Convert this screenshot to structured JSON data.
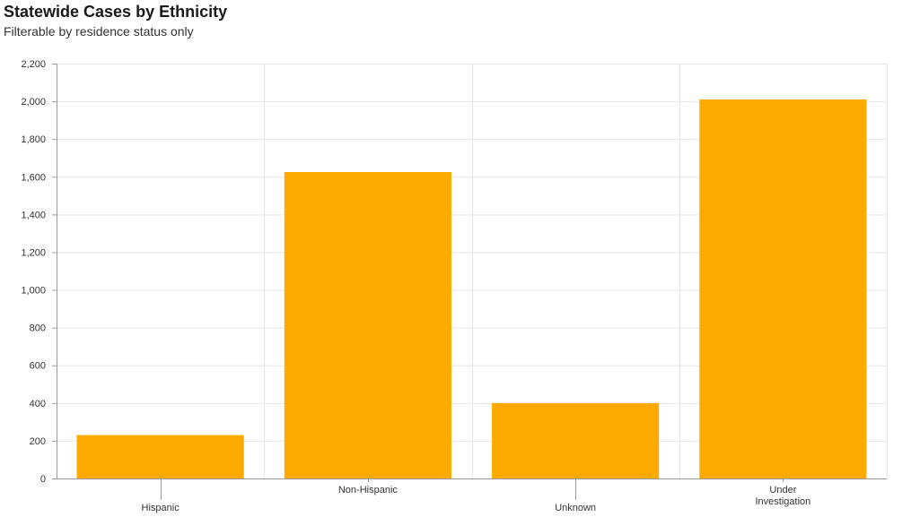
{
  "header": {
    "title": "Statewide Cases by Ethnicity",
    "subtitle": "Filterable by residence status only"
  },
  "colors": {
    "bar": "#FFAA00",
    "grid": "#e6e6e6",
    "axis": "#9a9a9a"
  },
  "chart_data": {
    "type": "bar",
    "categories": [
      "Hispanic",
      "Non-Hispanic",
      "Unknown",
      "Under Investigation"
    ],
    "category_lines": [
      [
        "Hispanic"
      ],
      [
        "Non-Hispanic"
      ],
      [
        "Unknown"
      ],
      [
        "Under",
        "Investigation"
      ]
    ],
    "values": [
      230,
      1625,
      400,
      2010
    ],
    "ylim": [
      0,
      2200
    ],
    "yticks": [
      0,
      200,
      400,
      600,
      800,
      1000,
      1200,
      1400,
      1600,
      1800,
      2000,
      2200
    ],
    "ytick_labels": [
      "0",
      "200",
      "400",
      "600",
      "800",
      "1,000",
      "1,200",
      "1,400",
      "1,600",
      "1,800",
      "2,000",
      "2,200"
    ],
    "grid": true,
    "legend": "none"
  }
}
